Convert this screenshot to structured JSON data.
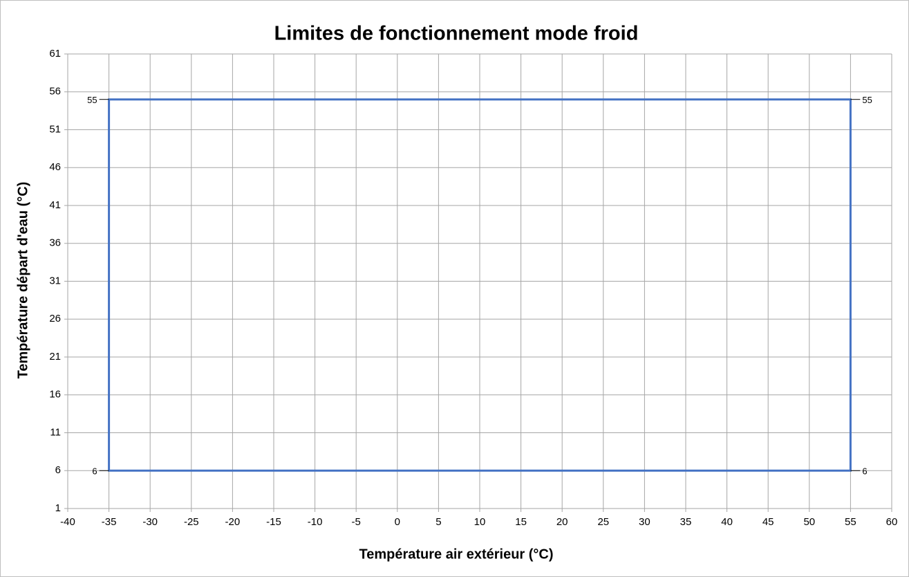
{
  "chart_data": {
    "type": "line",
    "title": "Limites de fonctionnement mode froid",
    "x_label": "Température air extérieur (°C)",
    "y_label": "Température départ d'eau (°C)",
    "x": [
      -35,
      -35,
      55,
      55
    ],
    "series": [
      {
        "color": "#4472c4",
        "values": [
          6,
          55,
          55,
          6
        ]
      }
    ],
    "closed": true,
    "data_labels": true,
    "xlim": [
      -40,
      60
    ],
    "xticks": [
      -40,
      -35,
      -30,
      -25,
      -20,
      -15,
      -10,
      -5,
      0,
      5,
      10,
      15,
      20,
      25,
      30,
      35,
      40,
      45,
      50,
      55,
      60
    ],
    "ylim": [
      1,
      61
    ],
    "yticks": [
      1,
      6,
      11,
      16,
      21,
      26,
      31,
      36,
      41,
      46,
      51,
      56,
      61
    ],
    "grid": true
  }
}
